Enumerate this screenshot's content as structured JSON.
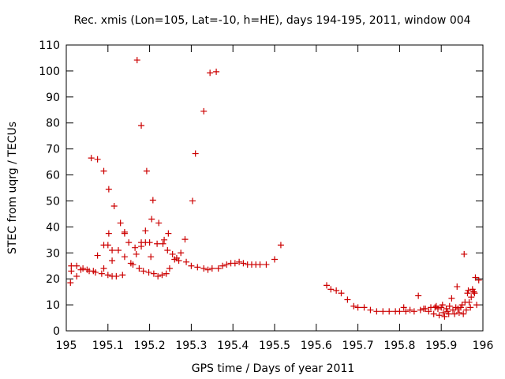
{
  "chart_data": {
    "type": "scatter",
    "title": "Rec. xmis (Lon=105, Lat=-10, h=HE), days 194-195, 2011, window 004",
    "xlabel": "GPS time / Days of year 2011",
    "ylabel": "STEC from uqrg / TECUs",
    "xlim": [
      195,
      196
    ],
    "ylim": [
      0,
      110
    ],
    "xticks": [
      "195",
      "195.1",
      "195.2",
      "195.3",
      "195.4",
      "195.5",
      "195.6",
      "195.7",
      "195.8",
      "195.9",
      "196"
    ],
    "xtick_values": [
      195,
      195.1,
      195.2,
      195.3,
      195.4,
      195.5,
      195.6,
      195.7,
      195.8,
      195.9,
      196
    ],
    "yticks": [
      "0",
      "10",
      "20",
      "30",
      "40",
      "50",
      "60",
      "70",
      "80",
      "90",
      "100",
      "110"
    ],
    "ytick_values": [
      0,
      10,
      20,
      30,
      40,
      50,
      60,
      70,
      80,
      90,
      100,
      110
    ],
    "grid": false,
    "marker": "+",
    "color": "#cc0000",
    "points": [
      [
        195.01,
        18.5
      ],
      [
        195.012,
        23
      ],
      [
        195.012,
        25
      ],
      [
        195.025,
        21
      ],
      [
        195.025,
        25
      ],
      [
        195.035,
        23.5
      ],
      [
        195.04,
        24
      ],
      [
        195.05,
        23.5
      ],
      [
        195.055,
        23
      ],
      [
        195.06,
        66.5
      ],
      [
        195.065,
        23
      ],
      [
        195.07,
        22.5
      ],
      [
        195.075,
        29
      ],
      [
        195.075,
        66
      ],
      [
        195.085,
        22
      ],
      [
        195.09,
        24
      ],
      [
        195.09,
        33
      ],
      [
        195.09,
        61.5
      ],
      [
        195.1,
        21.5
      ],
      [
        195.1,
        33
      ],
      [
        195.102,
        37.5
      ],
      [
        195.102,
        54.5
      ],
      [
        195.11,
        21
      ],
      [
        195.11,
        27
      ],
      [
        195.11,
        31
      ],
      [
        195.115,
        48
      ],
      [
        195.12,
        21
      ],
      [
        195.125,
        31
      ],
      [
        195.13,
        41.5
      ],
      [
        195.135,
        21.5
      ],
      [
        195.14,
        28.5
      ],
      [
        195.14,
        37.5
      ],
      [
        195.14,
        38
      ],
      [
        195.15,
        34
      ],
      [
        195.155,
        26
      ],
      [
        195.16,
        25.5
      ],
      [
        195.165,
        32
      ],
      [
        195.168,
        29.5
      ],
      [
        195.17,
        104.2
      ],
      [
        195.175,
        24
      ],
      [
        195.18,
        79
      ],
      [
        195.18,
        32.5
      ],
      [
        195.18,
        34
      ],
      [
        195.185,
        23
      ],
      [
        195.19,
        34
      ],
      [
        195.19,
        38.5
      ],
      [
        195.193,
        61.5
      ],
      [
        195.198,
        22.5
      ],
      [
        195.2,
        34
      ],
      [
        195.203,
        28.5
      ],
      [
        195.205,
        43
      ],
      [
        195.208,
        50.3
      ],
      [
        195.21,
        22
      ],
      [
        195.218,
        33.5
      ],
      [
        195.22,
        21
      ],
      [
        195.222,
        41.5
      ],
      [
        195.23,
        21.5
      ],
      [
        195.232,
        33.5
      ],
      [
        195.235,
        35
      ],
      [
        195.24,
        22
      ],
      [
        195.243,
        31
      ],
      [
        195.245,
        37.5
      ],
      [
        195.248,
        24
      ],
      [
        195.255,
        29.5
      ],
      [
        195.26,
        27.5
      ],
      [
        195.265,
        28
      ],
      [
        195.27,
        27
      ],
      [
        195.275,
        30
      ],
      [
        195.285,
        35.2
      ],
      [
        195.288,
        26.5
      ],
      [
        195.3,
        25
      ],
      [
        195.303,
        50
      ],
      [
        195.31,
        68.2
      ],
      [
        195.315,
        24.5
      ],
      [
        195.33,
        84.5
      ],
      [
        195.33,
        24
      ],
      [
        195.34,
        23.5
      ],
      [
        195.345,
        99.3
      ],
      [
        195.35,
        24
      ],
      [
        195.36,
        99.7
      ],
      [
        195.365,
        24
      ],
      [
        195.375,
        25
      ],
      [
        195.385,
        25.5
      ],
      [
        195.395,
        26
      ],
      [
        195.405,
        26
      ],
      [
        195.415,
        26.5
      ],
      [
        195.425,
        26
      ],
      [
        195.435,
        25.5
      ],
      [
        195.445,
        25.5
      ],
      [
        195.455,
        25.5
      ],
      [
        195.465,
        25.5
      ],
      [
        195.48,
        25.5
      ],
      [
        195.5,
        27.5
      ],
      [
        195.515,
        33
      ],
      [
        195.625,
        17.5
      ],
      [
        195.635,
        16
      ],
      [
        195.648,
        15.5
      ],
      [
        195.66,
        14.5
      ],
      [
        195.675,
        12
      ],
      [
        195.69,
        9.5
      ],
      [
        195.7,
        9
      ],
      [
        195.715,
        9
      ],
      [
        195.73,
        8
      ],
      [
        195.745,
        7.5
      ],
      [
        195.76,
        7.5
      ],
      [
        195.775,
        7.5
      ],
      [
        195.79,
        7.5
      ],
      [
        195.8,
        7.5
      ],
      [
        195.81,
        9
      ],
      [
        195.815,
        7.5
      ],
      [
        195.825,
        8
      ],
      [
        195.835,
        7.5
      ],
      [
        195.845,
        13.5
      ],
      [
        195.85,
        8
      ],
      [
        195.858,
        8.5
      ],
      [
        195.862,
        8.5
      ],
      [
        195.87,
        7.5
      ],
      [
        195.875,
        9
      ],
      [
        195.882,
        6.5
      ],
      [
        195.885,
        9
      ],
      [
        195.888,
        9.5
      ],
      [
        195.892,
        8.5
      ],
      [
        195.895,
        6
      ],
      [
        195.9,
        9
      ],
      [
        195.903,
        10
      ],
      [
        195.905,
        7
      ],
      [
        195.908,
        5.5
      ],
      [
        195.912,
        8.5
      ],
      [
        195.915,
        7.5
      ],
      [
        195.918,
        6.5
      ],
      [
        195.92,
        9.5
      ],
      [
        195.925,
        12.5
      ],
      [
        195.928,
        8
      ],
      [
        195.932,
        6.5
      ],
      [
        195.935,
        9
      ],
      [
        195.938,
        17
      ],
      [
        195.94,
        8.5
      ],
      [
        195.943,
        7
      ],
      [
        195.947,
        9
      ],
      [
        195.95,
        10
      ],
      [
        195.953,
        6.5
      ],
      [
        195.955,
        29.5
      ],
      [
        195.957,
        11
      ],
      [
        195.96,
        8
      ],
      [
        195.963,
        14.5
      ],
      [
        195.965,
        15.5
      ],
      [
        195.967,
        11
      ],
      [
        195.97,
        9
      ],
      [
        195.972,
        13
      ],
      [
        195.975,
        16
      ],
      [
        195.978,
        15
      ],
      [
        195.98,
        14.5
      ],
      [
        195.982,
        20.5
      ],
      [
        195.985,
        10
      ],
      [
        195.99,
        19.5
      ]
    ]
  }
}
